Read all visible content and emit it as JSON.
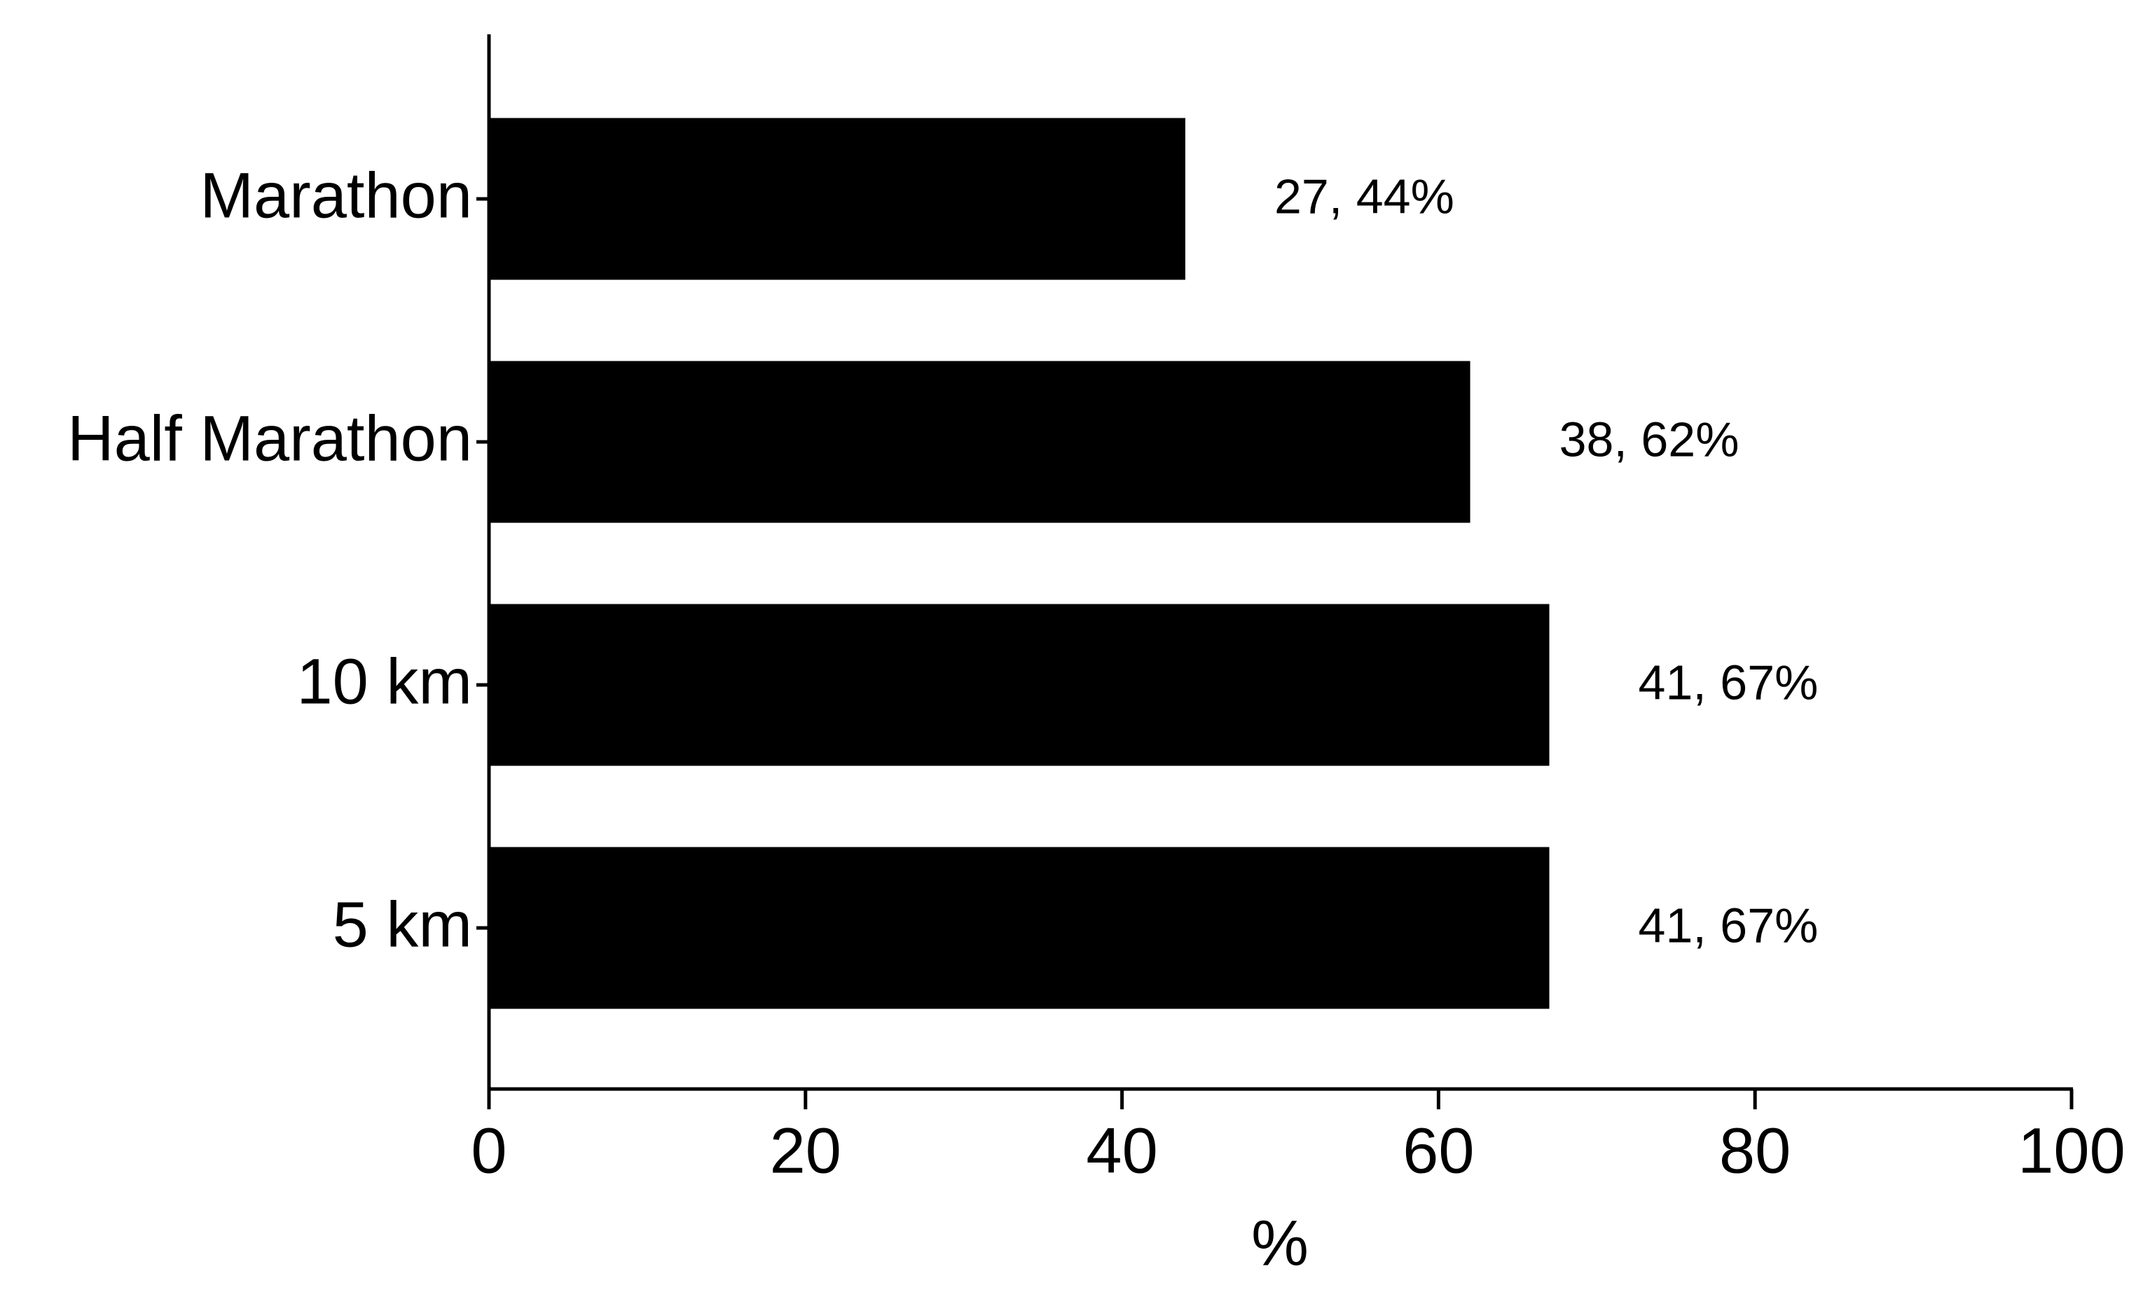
{
  "chart_data": {
    "type": "bar",
    "orientation": "horizontal",
    "categories": [
      "Marathon",
      "Half Marathon",
      "10 km",
      "5 km"
    ],
    "values": [
      44,
      62,
      67,
      67
    ],
    "value_labels": [
      "27, 44%",
      "38, 62%",
      "41, 67%",
      "41, 67%"
    ],
    "color": "#000000",
    "x_label": "%",
    "xlim": [
      0,
      100
    ],
    "xticks": [
      0,
      20,
      40,
      60,
      80,
      100
    ],
    "grid": false
  }
}
